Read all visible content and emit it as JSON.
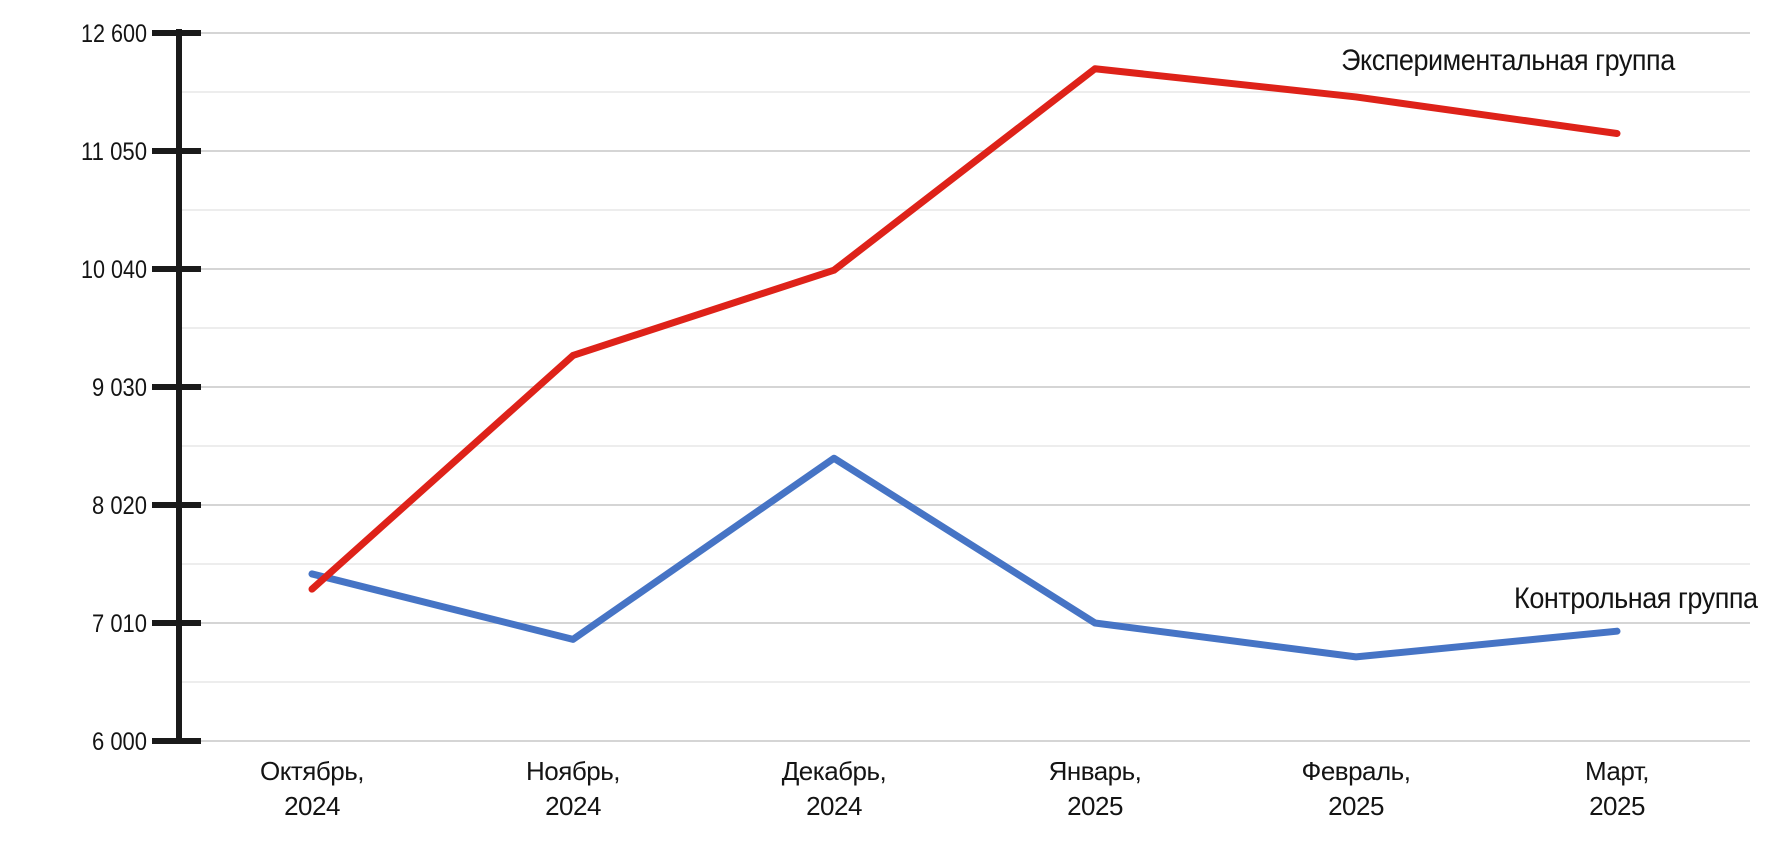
{
  "chart_data": {
    "type": "line",
    "title": "",
    "xlabel": "",
    "ylabel": "",
    "legend_position": "inline-annotations-at-line-ends",
    "grid": {
      "horizontal": true,
      "major_color": "#d5d5d5",
      "minor_color": "#ededed",
      "axis_color": "#1a1a1a"
    },
    "y_axis": {
      "tick_labels": [
        "12 600",
        "11 050",
        "10 040",
        "9 030",
        "8 020",
        "7 010",
        "6 000"
      ],
      "tick_values": [
        12600,
        11050,
        10040,
        9030,
        8020,
        7010,
        6000
      ],
      "ylim": [
        6000,
        12600
      ]
    },
    "categories": [
      {
        "line1": "Октябрь,",
        "line2": "2024"
      },
      {
        "line1": "Ноябрь,",
        "line2": "2024"
      },
      {
        "line1": "Декабрь,",
        "line2": "2024"
      },
      {
        "line1": "Январь,",
        "line2": "2025"
      },
      {
        "line1": "Февраль,",
        "line2": "2025"
      },
      {
        "line1": "Март,",
        "line2": "2025"
      }
    ],
    "series": [
      {
        "key": "experimental",
        "name": "Экспериментальная группа",
        "color": "#de2219",
        "values": [
          7300,
          9300,
          10030,
          12130,
          11760,
          11280
        ]
      },
      {
        "key": "control",
        "name": "Контрольная группа",
        "color": "#4674c5",
        "values": [
          7430,
          6870,
          8420,
          7010,
          6720,
          6940
        ]
      }
    ]
  }
}
